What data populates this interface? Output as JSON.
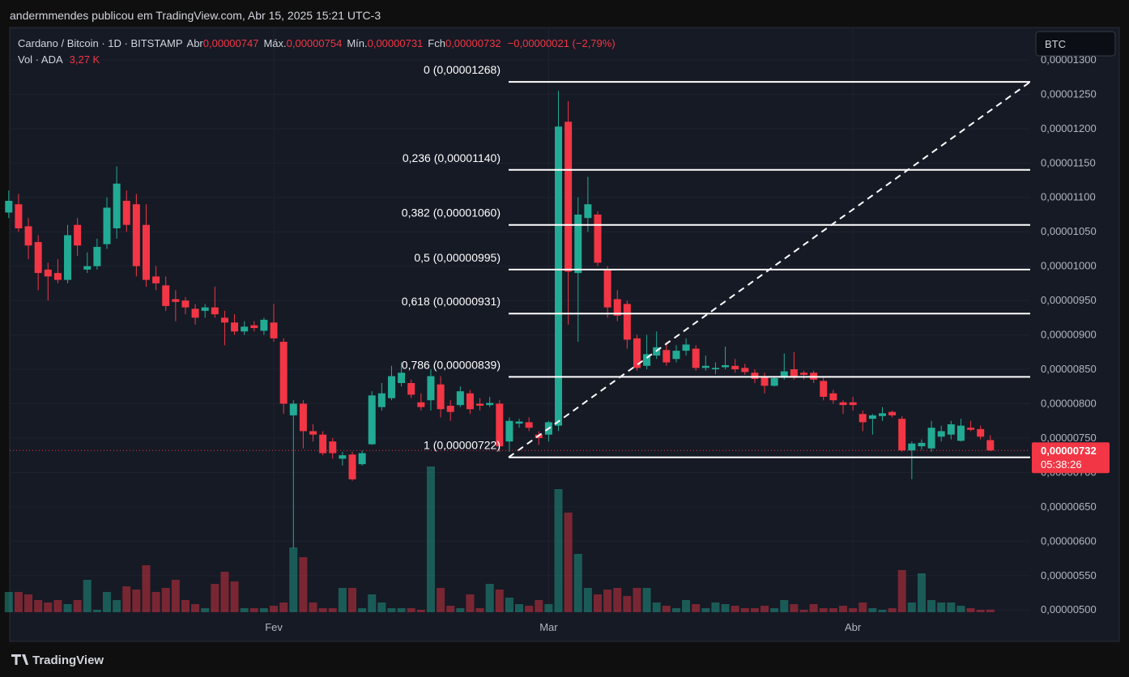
{
  "header": {
    "publisher": "andermmendes publicou em TradingView.com, Abr 15, 2025 15:21 UTC-3"
  },
  "footer": {
    "brand": "TradingView"
  },
  "currency_button": "BTC",
  "chart_data": {
    "type": "candlestick",
    "symbol": "Cardano / Bitcoin · 1D · BITSTAMP",
    "legend": {
      "open_label": "Abr",
      "open": "0,00000747",
      "high_label": "Máx.",
      "high": "0,00000754",
      "low_label": "Mín.",
      "low": "0,00000731",
      "close_label": "Fch",
      "close": "0,00000732",
      "change": "−0,00000021 (−2,79%)"
    },
    "categories": [
      null,
      null,
      null,
      null,
      null,
      null,
      null,
      null,
      null,
      null,
      null,
      null,
      null,
      null,
      null,
      null,
      null,
      null,
      null,
      null,
      null,
      null,
      null,
      null,
      null,
      null,
      null,
      "Fev",
      null,
      null,
      null,
      null,
      null,
      null,
      null,
      null,
      null,
      null,
      null,
      null,
      null,
      null,
      null,
      null,
      null,
      null,
      null,
      null,
      null,
      null,
      null,
      null,
      null,
      null,
      null,
      "Mar",
      null,
      null,
      null,
      null,
      null,
      null,
      null,
      null,
      null,
      null,
      null,
      null,
      null,
      null,
      null,
      null,
      null,
      null,
      null,
      null,
      null,
      null,
      null,
      null,
      null,
      null,
      null,
      null,
      null,
      null,
      "Abr",
      null,
      null,
      null,
      null,
      null,
      null,
      null,
      null,
      null,
      null,
      null,
      null,
      null,
      null
    ],
    "open": [
      1.078e-05,
      1.09e-05,
      1.058e-05,
      1.035e-05,
      9.95e-06,
      9.9e-06,
      9.8e-06,
      1.06e-05,
      9.95e-06,
      1e-05,
      1.032e-05,
      1.055e-05,
      1.095e-05,
      1.09e-05,
      1.06e-05,
      9.85e-06,
      9.72e-06,
      9.52e-06,
      9.5e-06,
      9.38e-06,
      9.35e-06,
      9.4e-06,
      9.25e-06,
      9.18e-06,
      9.05e-06,
      9.14e-06,
      9.06e-06,
      9.18e-06,
      8.9e-06,
      7.83e-06,
      8e-06,
      7.6e-06,
      7.55e-06,
      7.45e-06,
      7.2e-06,
      7.26e-06,
      7.12e-06,
      7.41e-06,
      7.95e-06,
      8.08e-06,
      8.3e-06,
      8.3e-06,
      8.02e-06,
      8.05e-06,
      8.28e-06,
      7.97e-06,
      7.98e-06,
      8.15e-06,
      8e-06,
      7.98e-06,
      8e-06,
      7.45e-06,
      7.71e-06,
      7.73e-06,
      7.55e-06,
      7.55e-06,
      7.68e-06,
      1.21e-05,
      9.9e-06,
      1.07e-05,
      1.075e-05,
      9.95e-06,
      9.52e-06,
      9.45e-06,
      8.95e-06,
      8.55e-06,
      8.7e-06,
      8.78e-06,
      8.65e-06,
      8.77e-06,
      8.8e-06,
      8.52e-06,
      8.5e-06,
      8.53e-06,
      8.55e-06,
      8.52e-06,
      8.45e-06,
      8.4e-06,
      8.26e-06,
      8.38e-06,
      8.5e-06,
      8.45e-06,
      8.45e-06,
      8.33e-06,
      8.15e-06,
      8.02e-06,
      8.02e-06,
      7.85e-06,
      7.78e-06,
      7.82e-06,
      7.88e-06,
      7.78e-06,
      7.32e-06,
      7.38e-06,
      7.35e-06,
      7.52e-06,
      7.55e-06,
      7.46e-06,
      7.65e-06,
      7.63e-06,
      7.47e-06
    ],
    "high": [
      1.11e-05,
      1.105e-05,
      1.07e-05,
      1.045e-05,
      1.005e-05,
      1.01e-05,
      1.06e-05,
      1.07e-05,
      1.02e-05,
      1.04e-05,
      1.1e-05,
      1.145e-05,
      1.11e-05,
      1.105e-05,
      1.09e-05,
      1e-05,
      9.85e-06,
      9.65e-06,
      9.55e-06,
      9.45e-06,
      9.45e-06,
      9.7e-06,
      9.35e-06,
      9.3e-06,
      9.2e-06,
      9.2e-06,
      9.25e-06,
      9.45e-06,
      8.95e-06,
      8.05e-06,
      8.05e-06,
      7.7e-06,
      7.6e-06,
      7.5e-06,
      7.3e-06,
      7.3e-06,
      7.32e-06,
      8.18e-06,
      8.3e-06,
      8.55e-06,
      8.6e-06,
      8.35e-06,
      8.15e-06,
      8.5e-06,
      8.4e-06,
      8.05e-06,
      8.25e-06,
      8.2e-06,
      8.08e-06,
      8.1e-06,
      8.05e-06,
      7.8e-06,
      7.78e-06,
      7.8e-06,
      7.6e-06,
      7.75e-06,
      1.255e-05,
      1.24e-05,
      1.1e-05,
      1.13e-05,
      1.08e-05,
      1e-05,
      9.65e-06,
      9.5e-06,
      9e-06,
      9e-06,
      9.05e-06,
      8.9e-06,
      8.85e-06,
      8.95e-06,
      8.85e-06,
      8.7e-06,
      8.6e-06,
      8.83e-06,
      8.65e-06,
      8.58e-06,
      8.5e-06,
      8.45e-06,
      8.4e-06,
      8.73e-06,
      8.75e-06,
      8.48e-06,
      8.48e-06,
      8.38e-06,
      8.2e-06,
      8.05e-06,
      8.1e-06,
      7.9e-06,
      7.85e-06,
      7.95e-06,
      7.9e-06,
      7.82e-06,
      7.45e-06,
      7.48e-06,
      7.75e-06,
      7.68e-06,
      7.75e-06,
      7.78e-06,
      7.75e-06,
      7.68e-06,
      7.54e-06
    ],
    "low": [
      1.07e-05,
      1.05e-05,
      1.01e-05,
      9.65e-06,
      9.5e-06,
      9.75e-06,
      9.75e-06,
      1.015e-05,
      9.9e-06,
      9.95e-06,
      1.025e-05,
      1.04e-05,
      1.05e-05,
      9.85e-06,
      9.7e-06,
      9.65e-06,
      9.35e-06,
      9.2e-06,
      9.3e-06,
      9.15e-06,
      9.25e-06,
      9.25e-06,
      8.85e-06,
      9e-06,
      9e-06,
      9.05e-06,
      9e-06,
      8.9e-06,
      7.85e-06,
      5.9e-06,
      7.35e-06,
      7.45e-06,
      7.25e-06,
      7.2e-06,
      7.1e-06,
      6.88e-06,
      7.1e-06,
      7.4e-06,
      7.9e-06,
      8.05e-06,
      8.25e-06,
      8.08e-06,
      7.9e-06,
      7.9e-06,
      7.8e-06,
      7.75e-06,
      7.95e-06,
      7.85e-06,
      7.9e-06,
      7.95e-06,
      7.3e-06,
      7.3e-06,
      7.65e-06,
      7.6e-06,
      7.4e-06,
      7.45e-06,
      7.6e-06,
      9.15e-06,
      8.9e-06,
      1.05e-05,
      1e-05,
      9.25e-06,
      9.2e-06,
      8.8e-06,
      8.48e-06,
      8.5e-06,
      8.65e-06,
      8.55e-06,
      8.6e-06,
      8.7e-06,
      8.48e-06,
      8.48e-06,
      8.43e-06,
      8.5e-06,
      8.45e-06,
      8.42e-06,
      8.3e-06,
      8.15e-06,
      8.25e-06,
      8.35e-06,
      8.35e-06,
      8.35e-06,
      8.3e-06,
      8.05e-06,
      8e-06,
      7.85e-06,
      7.9e-06,
      7.6e-06,
      7.55e-06,
      7.75e-06,
      7.8e-06,
      7.3e-06,
      6.9e-06,
      7.33e-06,
      7.3e-06,
      7.45e-06,
      7.48e-06,
      7.45e-06,
      7.6e-06,
      7.48e-06,
      7.31e-06
    ],
    "close": [
      1.095e-05,
      1.055e-05,
      1.03e-05,
      9.9e-06,
      9.85e-06,
      9.8e-06,
      1.045e-05,
      1.03e-05,
      1e-05,
      1.028e-05,
      1.085e-05,
      1.12e-05,
      1.06e-05,
      1e-05,
      9.8e-06,
      9.75e-06,
      9.42e-06,
      9.48e-06,
      9.4e-06,
      9.25e-06,
      9.4e-06,
      9.3e-06,
      9.18e-06,
      9.05e-06,
      9.12e-06,
      9.1e-06,
      9.22e-06,
      8.95e-06,
      8e-06,
      8e-06,
      7.6e-06,
      7.55e-06,
      7.28e-06,
      7.28e-06,
      7.25e-06,
      6.9e-06,
      7.28e-06,
      8.12e-06,
      8.15e-06,
      8.4e-06,
      8.45e-06,
      8.13e-06,
      7.95e-06,
      8.4e-06,
      7.92e-06,
      7.88e-06,
      8.18e-06,
      7.92e-06,
      7.97e-06,
      8.01e-06,
      7.38e-06,
      7.75e-06,
      7.74e-06,
      7.65e-06,
      7.5e-06,
      7.73e-06,
      1.203e-05,
      9.92e-06,
      1.075e-05,
      1.09e-05,
      1.005e-05,
      9.4e-06,
      9.28e-06,
      8.93e-06,
      8.52e-06,
      8.72e-06,
      8.82e-06,
      8.6e-06,
      8.77e-06,
      8.86e-06,
      8.52e-06,
      8.55e-06,
      8.52e-06,
      8.56e-06,
      8.5e-06,
      8.46e-06,
      8.36e-06,
      8.26e-06,
      8.37e-06,
      8.47e-06,
      8.38e-06,
      8.42e-06,
      8.35e-06,
      8.1e-06,
      8.05e-06,
      7.98e-06,
      7.98e-06,
      7.73e-06,
      7.83e-06,
      7.86e-06,
      7.83e-06,
      7.32e-06,
      7.42e-06,
      7.43e-06,
      7.65e-06,
      7.6e-06,
      7.7e-06,
      7.68e-06,
      7.62e-06,
      7.52e-06,
      7.32e-06
    ],
    "volume": {
      "name": "Vol · ADA",
      "last_label": "3,27 K",
      "values": [
        25,
        25,
        22,
        15,
        12,
        15,
        10,
        15,
        40,
        3,
        25,
        15,
        32,
        28,
        58,
        25,
        30,
        40,
        15,
        10,
        5,
        35,
        50,
        38,
        5,
        5,
        5,
        8,
        12,
        80,
        68,
        12,
        5,
        5,
        30,
        30,
        5,
        22,
        12,
        5,
        5,
        5,
        3,
        180,
        30,
        8,
        5,
        22,
        5,
        35,
        28,
        18,
        10,
        8,
        15,
        10,
        152,
        123,
        72,
        30,
        22,
        28,
        30,
        20,
        30,
        30,
        12,
        8,
        5,
        15,
        10,
        5,
        12,
        10,
        8,
        5,
        5,
        8,
        5,
        15,
        10,
        3,
        10,
        5,
        5,
        8,
        5,
        12,
        5,
        3,
        5,
        52,
        12,
        48,
        15,
        12,
        12,
        8,
        5,
        3,
        3.27
      ],
      "ylim": [
        0,
        240
      ]
    },
    "up_color": "#22ab94",
    "down_color": "#f23645",
    "ylim": [
      4.92e-06,
      1.347e-05
    ],
    "yticks": [
      {
        "value": 5e-06,
        "label": "0,00000500"
      },
      {
        "value": 5.5e-06,
        "label": "0,00000550"
      },
      {
        "value": 6e-06,
        "label": "0,00000600"
      },
      {
        "value": 6.5e-06,
        "label": "0,00000650"
      },
      {
        "value": 7e-06,
        "label": "0,00000700"
      },
      {
        "value": 7.5e-06,
        "label": "0,00000750"
      },
      {
        "value": 8e-06,
        "label": "0,00000800"
      },
      {
        "value": 8.5e-06,
        "label": "0,00000850"
      },
      {
        "value": 9e-06,
        "label": "0,00000900"
      },
      {
        "value": 9.5e-06,
        "label": "0,00000950"
      },
      {
        "value": 1e-05,
        "label": "0,00001000"
      },
      {
        "value": 1.05e-05,
        "label": "0,00001050"
      },
      {
        "value": 1.1e-05,
        "label": "0,00001100"
      },
      {
        "value": 1.15e-05,
        "label": "0,00001150"
      },
      {
        "value": 1.2e-05,
        "label": "0,00001200"
      },
      {
        "value": 1.25e-05,
        "label": "0,00001250"
      },
      {
        "value": 1.3e-05,
        "label": "0,00001300"
      }
    ],
    "grid": true,
    "fib_levels": [
      {
        "value": 1.268e-05,
        "label": "0 (0,00001268)"
      },
      {
        "value": 1.14e-05,
        "label": "0,236 (0,00001140)"
      },
      {
        "value": 1.06e-05,
        "label": "0,382 (0,00001060)"
      },
      {
        "value": 9.95e-06,
        "label": "0,5 (0,00000995)"
      },
      {
        "value": 9.31e-06,
        "label": "0,618 (0,00000931)"
      },
      {
        "value": 8.39e-06,
        "label": "0,786 (0,00000839)"
      },
      {
        "value": 7.22e-06,
        "label": "1 (0,00000722)"
      }
    ],
    "price_tag": {
      "label": "0,00000732",
      "countdown": "05:38:26"
    }
  }
}
